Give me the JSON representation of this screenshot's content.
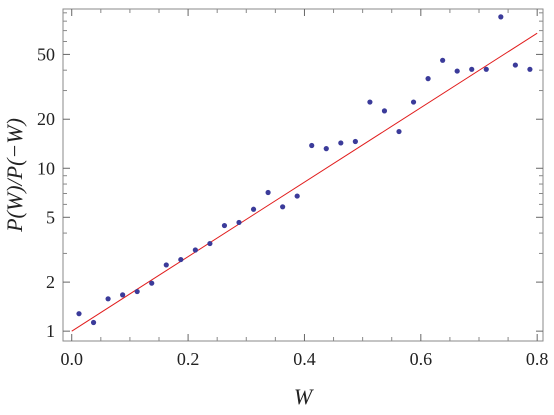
{
  "chart_data": {
    "type": "scatter",
    "title": "",
    "xlabel": "W",
    "ylabel": "P(W)/P(−W)",
    "xlim": [
      -0.015,
      0.81
    ],
    "ylim": [
      0.87,
      95
    ],
    "y_scale": "log",
    "x_ticks": [
      0.0,
      0.2,
      0.4,
      0.6,
      0.8
    ],
    "x_tick_labels": [
      "0.0",
      "0.2",
      "0.4",
      "0.6",
      "0.8"
    ],
    "y_ticks": [
      1,
      2,
      5,
      10,
      20,
      50
    ],
    "y_tick_labels": [
      "1",
      "2",
      "5",
      "10",
      "20",
      "50"
    ],
    "grid": false,
    "legend": "none",
    "colors": {
      "points": "#3b3b9a",
      "fit_line": "#e11d1d",
      "frame": "#8a8a8a"
    },
    "points": {
      "x": [
        0.0125,
        0.0375,
        0.0625,
        0.0875,
        0.1125,
        0.1375,
        0.1625,
        0.1875,
        0.2125,
        0.2375,
        0.2625,
        0.2875,
        0.3125,
        0.3375,
        0.3625,
        0.3875,
        0.4125,
        0.4375,
        0.4625,
        0.4875,
        0.5125,
        0.5375,
        0.5625,
        0.5875,
        0.6125,
        0.6375,
        0.6625,
        0.6875,
        0.7125,
        0.7375,
        0.7625,
        0.7875
      ],
      "y": [
        1.28,
        1.13,
        1.58,
        1.67,
        1.75,
        1.97,
        2.55,
        2.75,
        3.15,
        3.45,
        4.45,
        4.65,
        5.6,
        7.1,
        5.8,
        6.75,
        13.8,
        13.2,
        14.3,
        14.6,
        25.5,
        22.5,
        16.8,
        25.5,
        35.5,
        46.0,
        39.5,
        40.5,
        40.5,
        85.0,
        43.0,
        40.5
      ]
    },
    "fit_line": {
      "x": [
        0.0,
        0.8
      ],
      "y": [
        1.0,
        67.5
      ]
    }
  }
}
